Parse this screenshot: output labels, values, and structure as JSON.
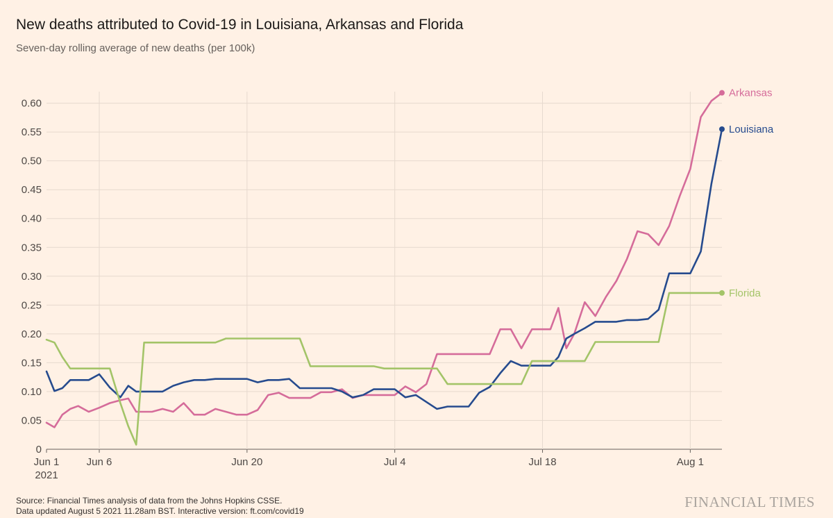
{
  "header": {
    "title": "New deaths attributed to Covid-19 in Louisiana, Arkansas and Florida",
    "subtitle": "Seven-day rolling average of new deaths (per 100k)"
  },
  "footer": {
    "source": "Source: Financial Times analysis of data from the Johns Hopkins CSSE.",
    "updated": "Data updated August 5 2021 11.28am BST. Interactive version: ft.com/covid19"
  },
  "brand": "FINANCIAL TIMES",
  "chart_data": {
    "type": "line",
    "x_start": "2021-06-01",
    "x_end": "2021-08-04",
    "ylim": [
      0,
      0.62
    ],
    "y_ticks": [
      0,
      0.05,
      0.1,
      0.15,
      0.2,
      0.25,
      0.3,
      0.35,
      0.4,
      0.45,
      0.5,
      0.55,
      0.6
    ],
    "y_tick_labels": [
      "0",
      "0.05",
      "0.10",
      "0.15",
      "0.20",
      "0.25",
      "0.30",
      "0.35",
      "0.40",
      "0.45",
      "0.50",
      "0.55",
      "0.60"
    ],
    "x_ticks": [
      {
        "date": "2021-06-01",
        "label": "Jun 1",
        "sublabel": "2021"
      },
      {
        "date": "2021-06-06",
        "label": "Jun 6",
        "sublabel": ""
      },
      {
        "date": "2021-06-20",
        "label": "Jun 20",
        "sublabel": ""
      },
      {
        "date": "2021-07-04",
        "label": "Jul 4",
        "sublabel": ""
      },
      {
        "date": "2021-07-18",
        "label": "Jul 18",
        "sublabel": ""
      },
      {
        "date": "2021-08-01",
        "label": "Aug 1",
        "sublabel": ""
      }
    ],
    "grid": true,
    "legend": "end-of-line labels",
    "series": [
      {
        "name": "Arkansas",
        "color": "#d56c9a",
        "values": [
          [
            "2021-06-01",
            0.046
          ],
          [
            "2021-06-01T18:00",
            0.038
          ],
          [
            "2021-06-02T12:00",
            0.06
          ],
          [
            "2021-06-03T06:00",
            0.07
          ],
          [
            "2021-06-04",
            0.075
          ],
          [
            "2021-06-05",
            0.065
          ],
          [
            "2021-06-06",
            0.072
          ],
          [
            "2021-06-07",
            0.08
          ],
          [
            "2021-06-08",
            0.085
          ],
          [
            "2021-06-08T18:00",
            0.088
          ],
          [
            "2021-06-09T12:00",
            0.065
          ],
          [
            "2021-06-10T06:00",
            0.065
          ],
          [
            "2021-06-11",
            0.065
          ],
          [
            "2021-06-12",
            0.07
          ],
          [
            "2021-06-13",
            0.065
          ],
          [
            "2021-06-14",
            0.08
          ],
          [
            "2021-06-15",
            0.06
          ],
          [
            "2021-06-16",
            0.06
          ],
          [
            "2021-06-17",
            0.07
          ],
          [
            "2021-06-18",
            0.065
          ],
          [
            "2021-06-19",
            0.06
          ],
          [
            "2021-06-20",
            0.06
          ],
          [
            "2021-06-21",
            0.068
          ],
          [
            "2021-06-22",
            0.094
          ],
          [
            "2021-06-23",
            0.098
          ],
          [
            "2021-06-24",
            0.089
          ],
          [
            "2021-06-25",
            0.089
          ],
          [
            "2021-06-26",
            0.089
          ],
          [
            "2021-06-27",
            0.099
          ],
          [
            "2021-06-28",
            0.099
          ],
          [
            "2021-06-29",
            0.104
          ],
          [
            "2021-06-30",
            0.089
          ],
          [
            "2021-07-01",
            0.094
          ],
          [
            "2021-07-02",
            0.094
          ],
          [
            "2021-07-03",
            0.094
          ],
          [
            "2021-07-04",
            0.094
          ],
          [
            "2021-07-05",
            0.109
          ],
          [
            "2021-07-06",
            0.099
          ],
          [
            "2021-07-07",
            0.113
          ],
          [
            "2021-07-08",
            0.165
          ],
          [
            "2021-07-09",
            0.165
          ],
          [
            "2021-07-10",
            0.165
          ],
          [
            "2021-07-11",
            0.165
          ],
          [
            "2021-07-12",
            0.165
          ],
          [
            "2021-07-13",
            0.165
          ],
          [
            "2021-07-14",
            0.208
          ],
          [
            "2021-07-15",
            0.208
          ],
          [
            "2021-07-16",
            0.175
          ],
          [
            "2021-07-17",
            0.208
          ],
          [
            "2021-07-18",
            0.208
          ],
          [
            "2021-07-18T18:00",
            0.208
          ],
          [
            "2021-07-19T12:00",
            0.245
          ],
          [
            "2021-07-20T06:00",
            0.175
          ],
          [
            "2021-07-21",
            0.2
          ],
          [
            "2021-07-22",
            0.255
          ],
          [
            "2021-07-23",
            0.231
          ],
          [
            "2021-07-24",
            0.264
          ],
          [
            "2021-07-25",
            0.292
          ],
          [
            "2021-07-26",
            0.33
          ],
          [
            "2021-07-27",
            0.378
          ],
          [
            "2021-07-28",
            0.373
          ],
          [
            "2021-07-29",
            0.354
          ],
          [
            "2021-07-30",
            0.387
          ],
          [
            "2021-07-31",
            0.439
          ],
          [
            "2021-08-01",
            0.486
          ],
          [
            "2021-08-02",
            0.576
          ],
          [
            "2021-08-03",
            0.604
          ],
          [
            "2021-08-04",
            0.618
          ]
        ]
      },
      {
        "name": "Louisiana",
        "color": "#264b8e",
        "values": [
          [
            "2021-06-01",
            0.135
          ],
          [
            "2021-06-01T18:00",
            0.101
          ],
          [
            "2021-06-02T12:00",
            0.106
          ],
          [
            "2021-06-03T06:00",
            0.12
          ],
          [
            "2021-06-04",
            0.12
          ],
          [
            "2021-06-05",
            0.12
          ],
          [
            "2021-06-06",
            0.13
          ],
          [
            "2021-06-07",
            0.107
          ],
          [
            "2021-06-08",
            0.09
          ],
          [
            "2021-06-08T18:00",
            0.11
          ],
          [
            "2021-06-09T12:00",
            0.1
          ],
          [
            "2021-06-10T06:00",
            0.1
          ],
          [
            "2021-06-11",
            0.1
          ],
          [
            "2021-06-12",
            0.1
          ],
          [
            "2021-06-13",
            0.11
          ],
          [
            "2021-06-14",
            0.116
          ],
          [
            "2021-06-15",
            0.12
          ],
          [
            "2021-06-16",
            0.12
          ],
          [
            "2021-06-17",
            0.122
          ],
          [
            "2021-06-18",
            0.122
          ],
          [
            "2021-06-19",
            0.122
          ],
          [
            "2021-06-20",
            0.122
          ],
          [
            "2021-06-21",
            0.116
          ],
          [
            "2021-06-22",
            0.12
          ],
          [
            "2021-06-23",
            0.12
          ],
          [
            "2021-06-24",
            0.122
          ],
          [
            "2021-06-25",
            0.106
          ],
          [
            "2021-06-26",
            0.106
          ],
          [
            "2021-06-27",
            0.106
          ],
          [
            "2021-06-28",
            0.106
          ],
          [
            "2021-06-29",
            0.1
          ],
          [
            "2021-06-30",
            0.09
          ],
          [
            "2021-07-01",
            0.094
          ],
          [
            "2021-07-02",
            0.104
          ],
          [
            "2021-07-03",
            0.104
          ],
          [
            "2021-07-04",
            0.104
          ],
          [
            "2021-07-05",
            0.09
          ],
          [
            "2021-07-06",
            0.094
          ],
          [
            "2021-07-07",
            0.082
          ],
          [
            "2021-07-08",
            0.07
          ],
          [
            "2021-07-09",
            0.074
          ],
          [
            "2021-07-10",
            0.074
          ],
          [
            "2021-07-11",
            0.074
          ],
          [
            "2021-07-12",
            0.098
          ],
          [
            "2021-07-13",
            0.108
          ],
          [
            "2021-07-14",
            0.132
          ],
          [
            "2021-07-15",
            0.153
          ],
          [
            "2021-07-16",
            0.145
          ],
          [
            "2021-07-17",
            0.145
          ],
          [
            "2021-07-18",
            0.145
          ],
          [
            "2021-07-18T18:00",
            0.145
          ],
          [
            "2021-07-19T12:00",
            0.16
          ],
          [
            "2021-07-20T06:00",
            0.192
          ],
          [
            "2021-07-21",
            0.2
          ],
          [
            "2021-07-22",
            0.21
          ],
          [
            "2021-07-23",
            0.221
          ],
          [
            "2021-07-24",
            0.221
          ],
          [
            "2021-07-25",
            0.221
          ],
          [
            "2021-07-26",
            0.224
          ],
          [
            "2021-07-27",
            0.224
          ],
          [
            "2021-07-28",
            0.226
          ],
          [
            "2021-07-29",
            0.242
          ],
          [
            "2021-07-30",
            0.305
          ],
          [
            "2021-07-31",
            0.305
          ],
          [
            "2021-08-01",
            0.305
          ],
          [
            "2021-08-02",
            0.343
          ],
          [
            "2021-08-03",
            0.46
          ],
          [
            "2021-08-04",
            0.555
          ]
        ]
      },
      {
        "name": "Florida",
        "color": "#a3c468",
        "values": [
          [
            "2021-06-01",
            0.19
          ],
          [
            "2021-06-01T18:00",
            0.185
          ],
          [
            "2021-06-02T12:00",
            0.16
          ],
          [
            "2021-06-03T06:00",
            0.14
          ],
          [
            "2021-06-04",
            0.14
          ],
          [
            "2021-06-05",
            0.14
          ],
          [
            "2021-06-06",
            0.14
          ],
          [
            "2021-06-07",
            0.14
          ],
          [
            "2021-06-08",
            0.08
          ],
          [
            "2021-06-08T18:00",
            0.04
          ],
          [
            "2021-06-09T12:00",
            0.008
          ],
          [
            "2021-06-10T06:00",
            0.185
          ],
          [
            "2021-06-11",
            0.185
          ],
          [
            "2021-06-12",
            0.185
          ],
          [
            "2021-06-13",
            0.185
          ],
          [
            "2021-06-14",
            0.185
          ],
          [
            "2021-06-15",
            0.185
          ],
          [
            "2021-06-16",
            0.185
          ],
          [
            "2021-06-17",
            0.185
          ],
          [
            "2021-06-18",
            0.192
          ],
          [
            "2021-06-19",
            0.192
          ],
          [
            "2021-06-20",
            0.192
          ],
          [
            "2021-06-21",
            0.192
          ],
          [
            "2021-06-22",
            0.192
          ],
          [
            "2021-06-23",
            0.192
          ],
          [
            "2021-06-24",
            0.192
          ],
          [
            "2021-06-25",
            0.192
          ],
          [
            "2021-06-26",
            0.144
          ],
          [
            "2021-06-27",
            0.144
          ],
          [
            "2021-06-28",
            0.144
          ],
          [
            "2021-06-29",
            0.144
          ],
          [
            "2021-06-30",
            0.144
          ],
          [
            "2021-07-01",
            0.144
          ],
          [
            "2021-07-02",
            0.144
          ],
          [
            "2021-07-03",
            0.14
          ],
          [
            "2021-07-04",
            0.14
          ],
          [
            "2021-07-05",
            0.14
          ],
          [
            "2021-07-06",
            0.14
          ],
          [
            "2021-07-07",
            0.14
          ],
          [
            "2021-07-08",
            0.14
          ],
          [
            "2021-07-09",
            0.113
          ],
          [
            "2021-07-10",
            0.113
          ],
          [
            "2021-07-11",
            0.113
          ],
          [
            "2021-07-12",
            0.113
          ],
          [
            "2021-07-13",
            0.113
          ],
          [
            "2021-07-14",
            0.113
          ],
          [
            "2021-07-15",
            0.113
          ],
          [
            "2021-07-16",
            0.113
          ],
          [
            "2021-07-17",
            0.153
          ],
          [
            "2021-07-18",
            0.153
          ],
          [
            "2021-07-18T18:00",
            0.153
          ],
          [
            "2021-07-19T12:00",
            0.153
          ],
          [
            "2021-07-20T06:00",
            0.153
          ],
          [
            "2021-07-21",
            0.153
          ],
          [
            "2021-07-22",
            0.153
          ],
          [
            "2021-07-23",
            0.186
          ],
          [
            "2021-07-24",
            0.186
          ],
          [
            "2021-07-25",
            0.186
          ],
          [
            "2021-07-26",
            0.186
          ],
          [
            "2021-07-27",
            0.186
          ],
          [
            "2021-07-28",
            0.186
          ],
          [
            "2021-07-29",
            0.186
          ],
          [
            "2021-07-30",
            0.271
          ],
          [
            "2021-07-31",
            0.271
          ],
          [
            "2021-08-01",
            0.271
          ],
          [
            "2021-08-02",
            0.271
          ],
          [
            "2021-08-03",
            0.271
          ],
          [
            "2021-08-04",
            0.271
          ]
        ]
      }
    ]
  }
}
